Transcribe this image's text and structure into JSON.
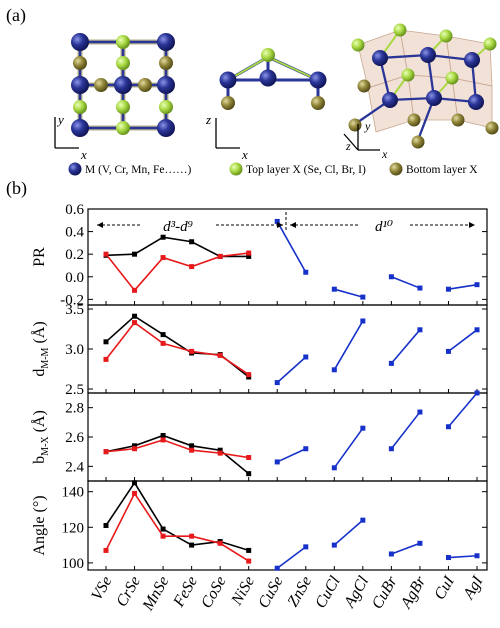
{
  "panel_a_label": "(a)",
  "panel_b_label": "(b)",
  "crystal": {
    "axes": [
      "x",
      "y",
      "z"
    ],
    "legend": [
      {
        "text": "M (V, Cr, Mn, Fe……)",
        "color": "#2a3598"
      },
      {
        "text": "Top layer X (Se, Cl, Br, I)",
        "color": "#a8d843"
      },
      {
        "text": "Bottom layer X",
        "color": "#8f8438"
      }
    ]
  },
  "colors": {
    "black_series": "#000000",
    "red_series": "#e8191b",
    "blue_series": "#1631c9"
  },
  "regions": {
    "left": "d³-d⁹",
    "right": "d¹⁰"
  },
  "chart_data": {
    "type": "line",
    "categories": [
      "VSe",
      "CrSe",
      "MnSe",
      "FeSe",
      "CoSe",
      "NiSe",
      "CuSe",
      "ZnSe",
      "CuCl",
      "AgCl",
      "CuBr",
      "AgBr",
      "CuI",
      "AgI"
    ],
    "panels": [
      {
        "ylabel": "PR",
        "ylim": [
          -0.25,
          0.6
        ],
        "yticks": [
          -0.2,
          0.0,
          0.2,
          0.4,
          0.6
        ],
        "ytick_labels": [
          "-0.2",
          "0.0",
          "0.2",
          "0.4",
          "0.6"
        ],
        "series": [
          {
            "color": "black_series",
            "points": [
              [
                0,
                0.19
              ],
              [
                1,
                0.2
              ],
              [
                2,
                0.35
              ],
              [
                3,
                0.31
              ],
              [
                4,
                0.18
              ],
              [
                5,
                0.18
              ]
            ]
          },
          {
            "color": "red_series",
            "points": [
              [
                0,
                0.2
              ],
              [
                1,
                -0.12
              ],
              [
                2,
                0.17
              ],
              [
                3,
                0.09
              ],
              [
                4,
                0.18
              ],
              [
                5,
                0.21
              ]
            ]
          },
          {
            "color": "blue_series",
            "points": [
              [
                6,
                0.49
              ],
              [
                7,
                0.04
              ]
            ]
          },
          {
            "color": "blue_series",
            "points": [
              [
                8,
                -0.11
              ],
              [
                9,
                -0.18
              ]
            ]
          },
          {
            "color": "blue_series",
            "points": [
              [
                10,
                0.0
              ],
              [
                11,
                -0.1
              ]
            ]
          },
          {
            "color": "blue_series",
            "points": [
              [
                12,
                -0.11
              ],
              [
                13,
                -0.07
              ]
            ]
          }
        ]
      },
      {
        "ylabel": "d",
        "ylabel_sub": "M-M",
        "ylabel_unit": "(Å)",
        "ylim": [
          2.45,
          3.55
        ],
        "yticks": [
          2.5,
          3.0,
          3.5
        ],
        "ytick_labels": [
          "2.5",
          "3.0",
          "3.5"
        ],
        "series": [
          {
            "color": "black_series",
            "points": [
              [
                0,
                3.09
              ],
              [
                1,
                3.41
              ],
              [
                2,
                3.18
              ],
              [
                3,
                2.95
              ],
              [
                4,
                2.93
              ],
              [
                5,
                2.65
              ]
            ]
          },
          {
            "color": "red_series",
            "points": [
              [
                0,
                2.87
              ],
              [
                1,
                3.33
              ],
              [
                2,
                3.07
              ],
              [
                3,
                2.97
              ],
              [
                4,
                2.92
              ],
              [
                5,
                2.68
              ]
            ]
          },
          {
            "color": "blue_series",
            "points": [
              [
                6,
                2.58
              ],
              [
                7,
                2.9
              ]
            ]
          },
          {
            "color": "blue_series",
            "points": [
              [
                8,
                2.74
              ],
              [
                9,
                3.35
              ]
            ]
          },
          {
            "color": "blue_series",
            "points": [
              [
                10,
                2.82
              ],
              [
                11,
                3.24
              ]
            ]
          },
          {
            "color": "blue_series",
            "points": [
              [
                12,
                2.97
              ],
              [
                13,
                3.24
              ]
            ]
          }
        ]
      },
      {
        "ylabel": "b",
        "ylabel_sub": "M-X",
        "ylabel_unit": "(Å)",
        "ylim": [
          2.3,
          2.9
        ],
        "yticks": [
          2.4,
          2.6,
          2.8
        ],
        "ytick_labels": [
          "2.4",
          "2.6",
          "2.8"
        ],
        "series": [
          {
            "color": "black_series",
            "points": [
              [
                0,
                2.5
              ],
              [
                1,
                2.54
              ],
              [
                2,
                2.61
              ],
              [
                3,
                2.54
              ],
              [
                4,
                2.51
              ],
              [
                5,
                2.35
              ]
            ]
          },
          {
            "color": "red_series",
            "points": [
              [
                0,
                2.5
              ],
              [
                1,
                2.52
              ],
              [
                2,
                2.58
              ],
              [
                3,
                2.51
              ],
              [
                4,
                2.49
              ],
              [
                5,
                2.46
              ]
            ]
          },
          {
            "color": "blue_series",
            "points": [
              [
                6,
                2.43
              ],
              [
                7,
                2.52
              ]
            ]
          },
          {
            "color": "blue_series",
            "points": [
              [
                8,
                2.39
              ],
              [
                9,
                2.66
              ]
            ]
          },
          {
            "color": "blue_series",
            "points": [
              [
                10,
                2.52
              ],
              [
                11,
                2.77
              ]
            ]
          },
          {
            "color": "blue_series",
            "points": [
              [
                12,
                2.67
              ],
              [
                13,
                2.9
              ]
            ]
          }
        ]
      },
      {
        "ylabel": "Angle",
        "ylabel_unit": "(°)",
        "ylim": [
          96,
          146
        ],
        "yticks": [
          100,
          120,
          140
        ],
        "ytick_labels": [
          "100",
          "120",
          "140"
        ],
        "series": [
          {
            "color": "black_series",
            "points": [
              [
                0,
                121
              ],
              [
                1,
                145
              ],
              [
                2,
                119
              ],
              [
                3,
                110
              ],
              [
                4,
                112
              ],
              [
                5,
                107
              ]
            ]
          },
          {
            "color": "red_series",
            "points": [
              [
                0,
                107
              ],
              [
                1,
                139
              ],
              [
                2,
                115
              ],
              [
                3,
                115
              ],
              [
                4,
                111
              ],
              [
                5,
                101
              ]
            ]
          },
          {
            "color": "blue_series",
            "points": [
              [
                6,
                97
              ],
              [
                7,
                109
              ]
            ]
          },
          {
            "color": "blue_series",
            "points": [
              [
                8,
                110
              ],
              [
                9,
                124
              ]
            ]
          },
          {
            "color": "blue_series",
            "points": [
              [
                10,
                105
              ],
              [
                11,
                111
              ]
            ]
          },
          {
            "color": "blue_series",
            "points": [
              [
                12,
                103
              ],
              [
                13,
                104
              ]
            ]
          }
        ]
      }
    ]
  }
}
